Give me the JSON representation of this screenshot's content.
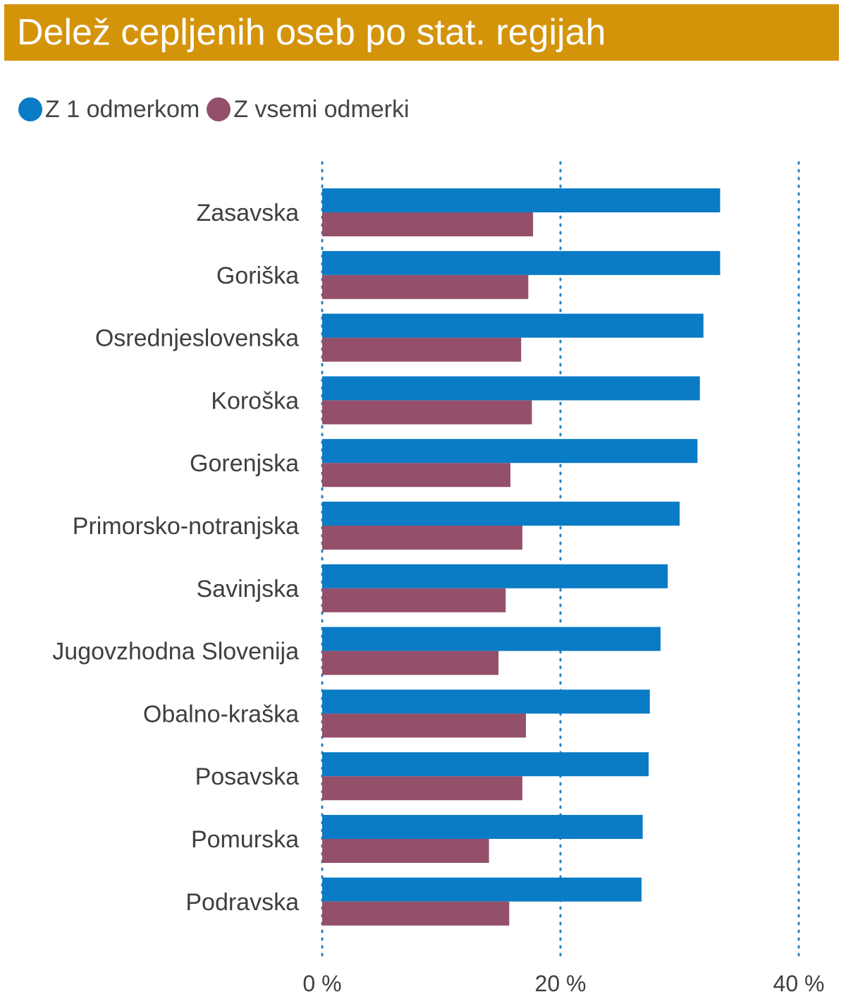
{
  "colors": {
    "title_bg": "#D4940A",
    "series1": "#0A7BC5",
    "series2": "#94506A",
    "grid": "#2A7FC0",
    "label": "#3F3F3F"
  },
  "chart_data": {
    "type": "bar",
    "orientation": "horizontal",
    "title": "Delež cepljenih oseb po stat. regijah",
    "categories": [
      "Zasavska",
      "Goriška",
      "Osrednjeslovenska",
      "Koroška",
      "Gorenjska",
      "Primorsko-notranjska",
      "Savinjska",
      "Jugovzhodna Slovenija",
      "Obalno-kraška",
      "Posavska",
      "Pomurska",
      "Podravska"
    ],
    "series": [
      {
        "name": "Z 1 odmerkom",
        "values": [
          33.4,
          33.4,
          32.0,
          31.7,
          31.5,
          30.0,
          29.0,
          28.4,
          27.5,
          27.4,
          26.9,
          26.8
        ]
      },
      {
        "name": "Z vsemi odmerki",
        "values": [
          17.7,
          17.3,
          16.7,
          17.6,
          15.8,
          16.8,
          15.4,
          14.8,
          17.1,
          16.8,
          14.0,
          15.7
        ]
      }
    ],
    "xlim": [
      0,
      40
    ],
    "xticks": [
      "0 %",
      "20 %",
      "40 %"
    ],
    "grid": true,
    "legend_position": "top-left"
  }
}
